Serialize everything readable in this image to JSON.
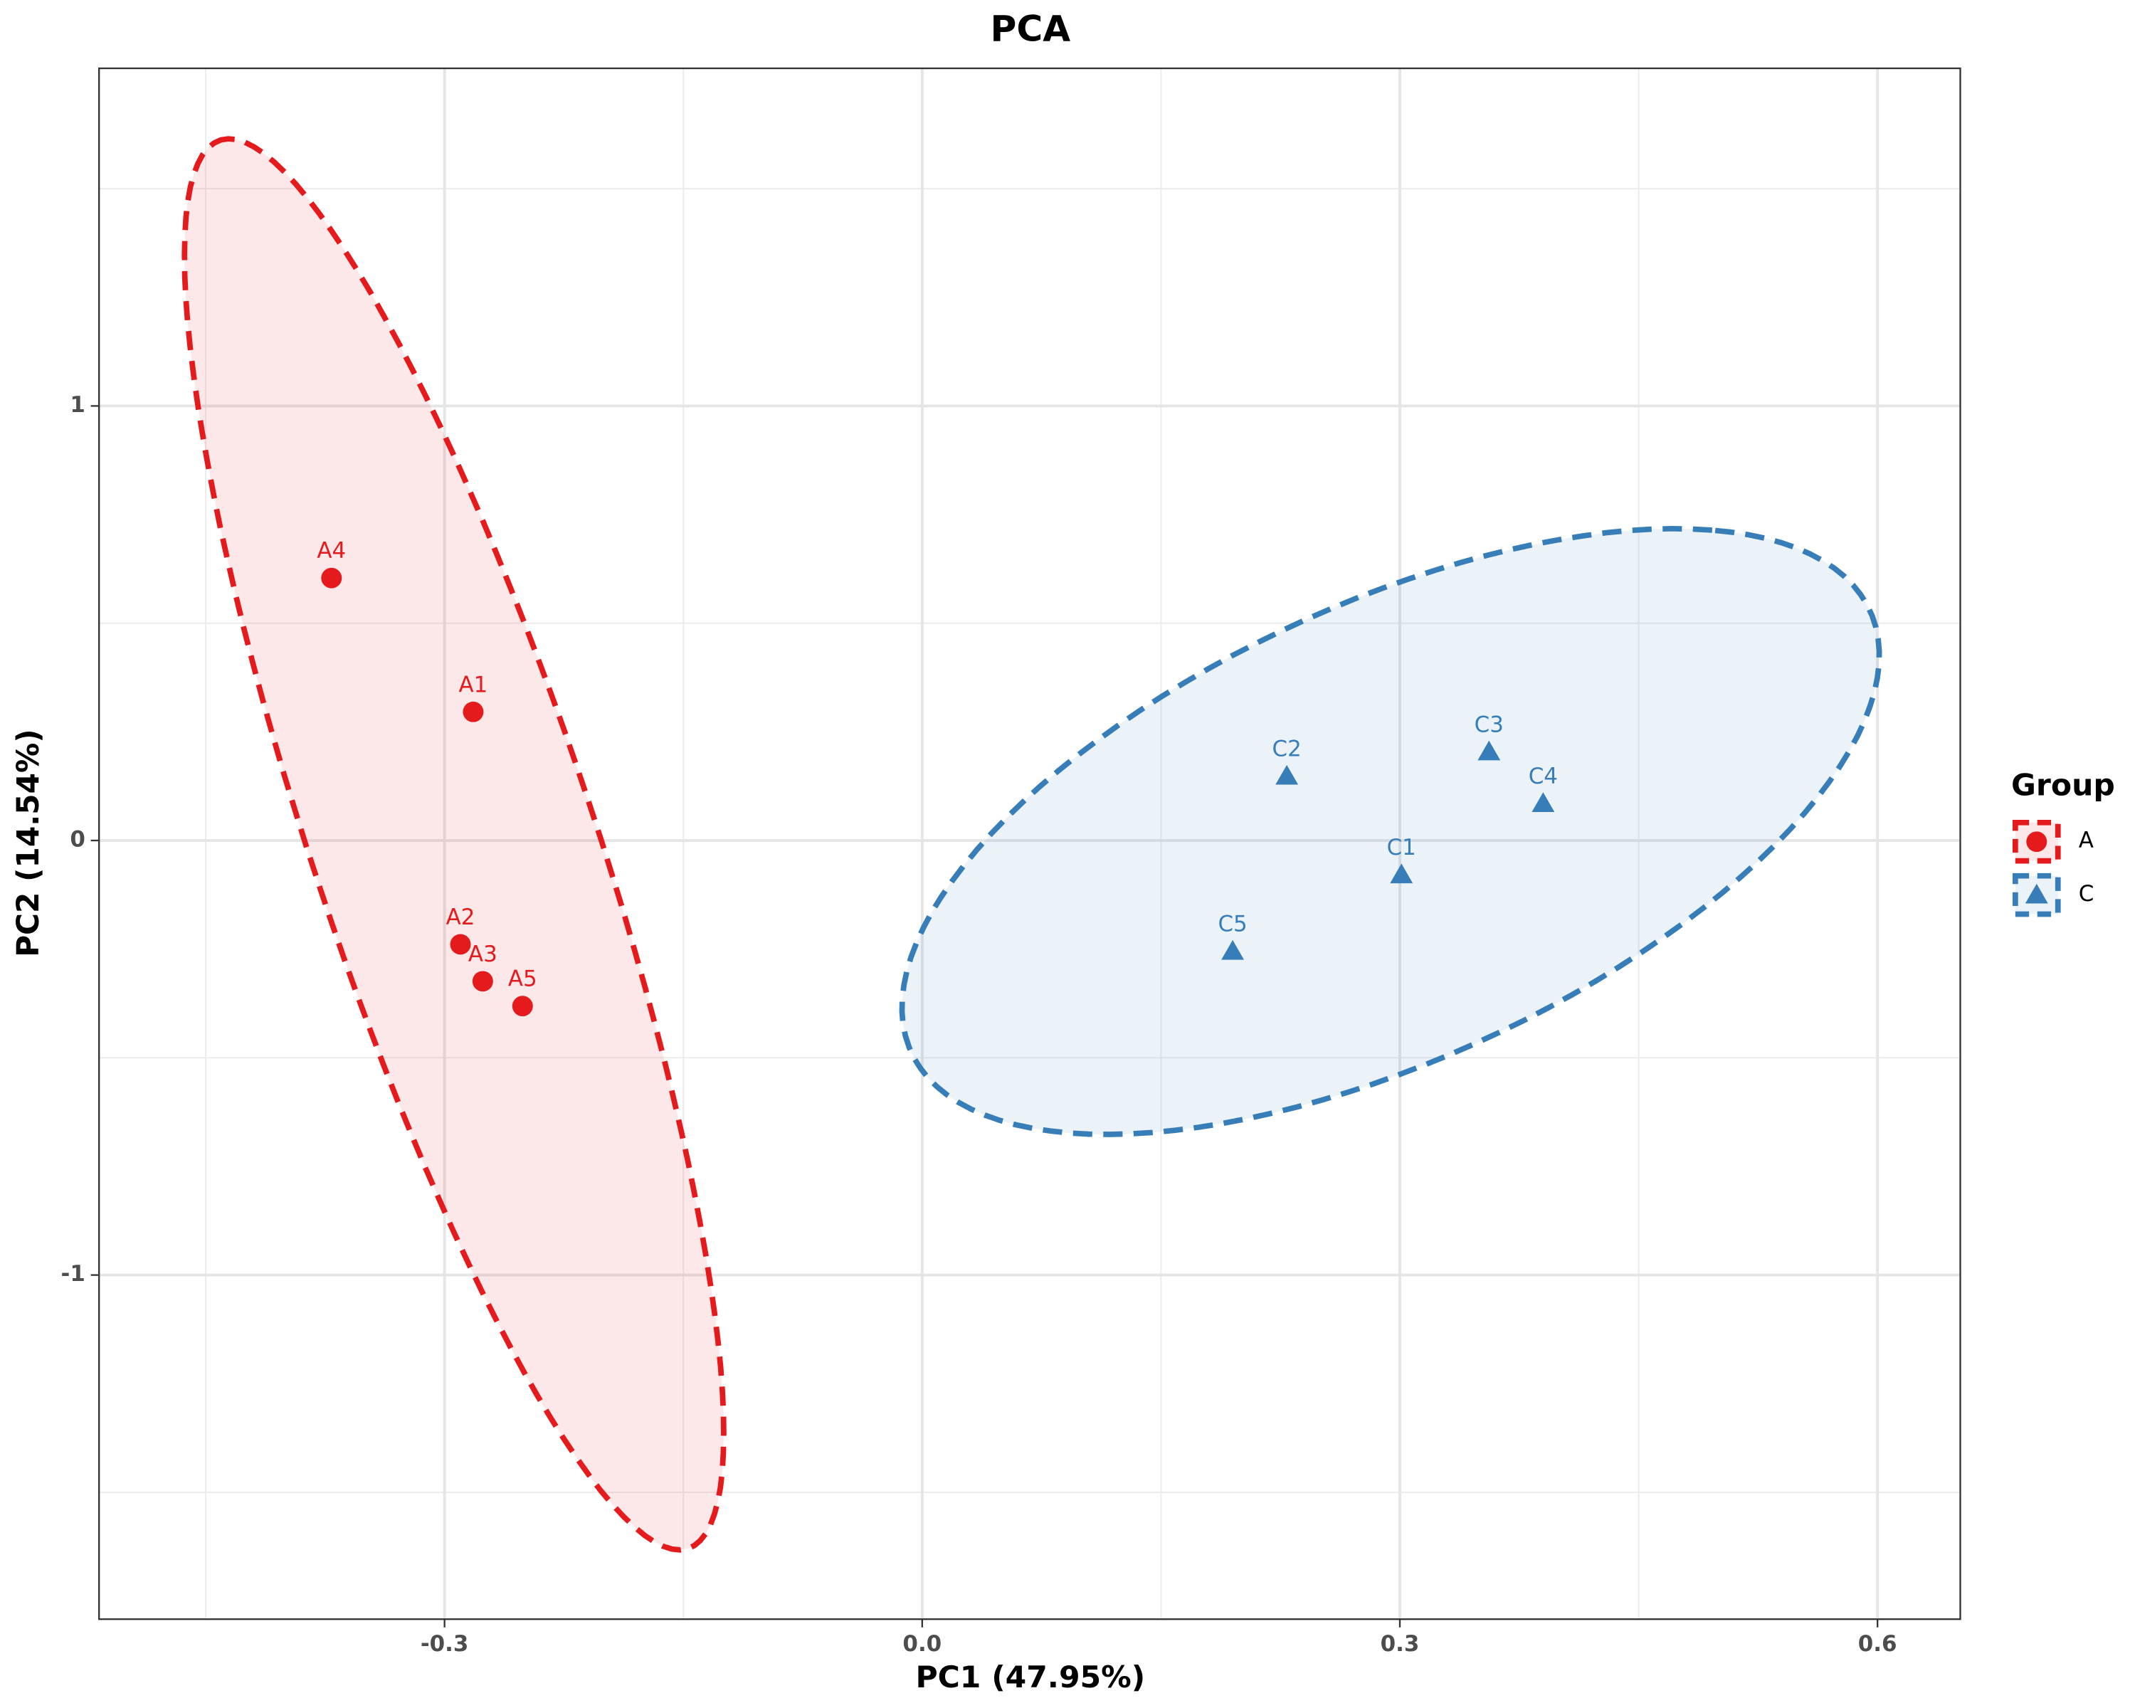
{
  "chart_data": {
    "type": "scatter",
    "title": "PCA",
    "x_label": "PC1 (47.95%)",
    "y_label": "PC2 (14.54%)",
    "legend_title": "Group",
    "legend_position": "right",
    "grid": true,
    "ellipses": true,
    "xlim": [
      -0.517,
      0.652
    ],
    "ylim": [
      -1.792,
      1.777
    ],
    "xticks": [
      -0.3,
      {
        "value": 0,
        "label": "0.0"
      },
      0.3,
      0.6
    ],
    "yticks": [
      -1,
      0,
      1
    ],
    "series": [
      {
        "name": "A",
        "color": "#e41a1c",
        "marker": "circle",
        "labels": [
          "A1",
          "A2",
          "A3",
          "A4",
          "A5"
        ],
        "x": [
          -0.282,
          -0.29,
          -0.276,
          -0.371,
          -0.251
        ],
        "values": [
          0.296,
          -0.239,
          -0.324,
          0.604,
          -0.381
        ]
      },
      {
        "name": "C",
        "color": "#377eb8",
        "marker": "triangle",
        "labels": [
          "C1",
          "C2",
          "C3",
          "C4",
          "C5"
        ],
        "x": [
          0.301,
          0.229,
          0.356,
          0.39,
          0.195
        ],
        "values": [
          -0.079,
          0.148,
          0.204,
          0.085,
          -0.255
        ]
      }
    ]
  }
}
